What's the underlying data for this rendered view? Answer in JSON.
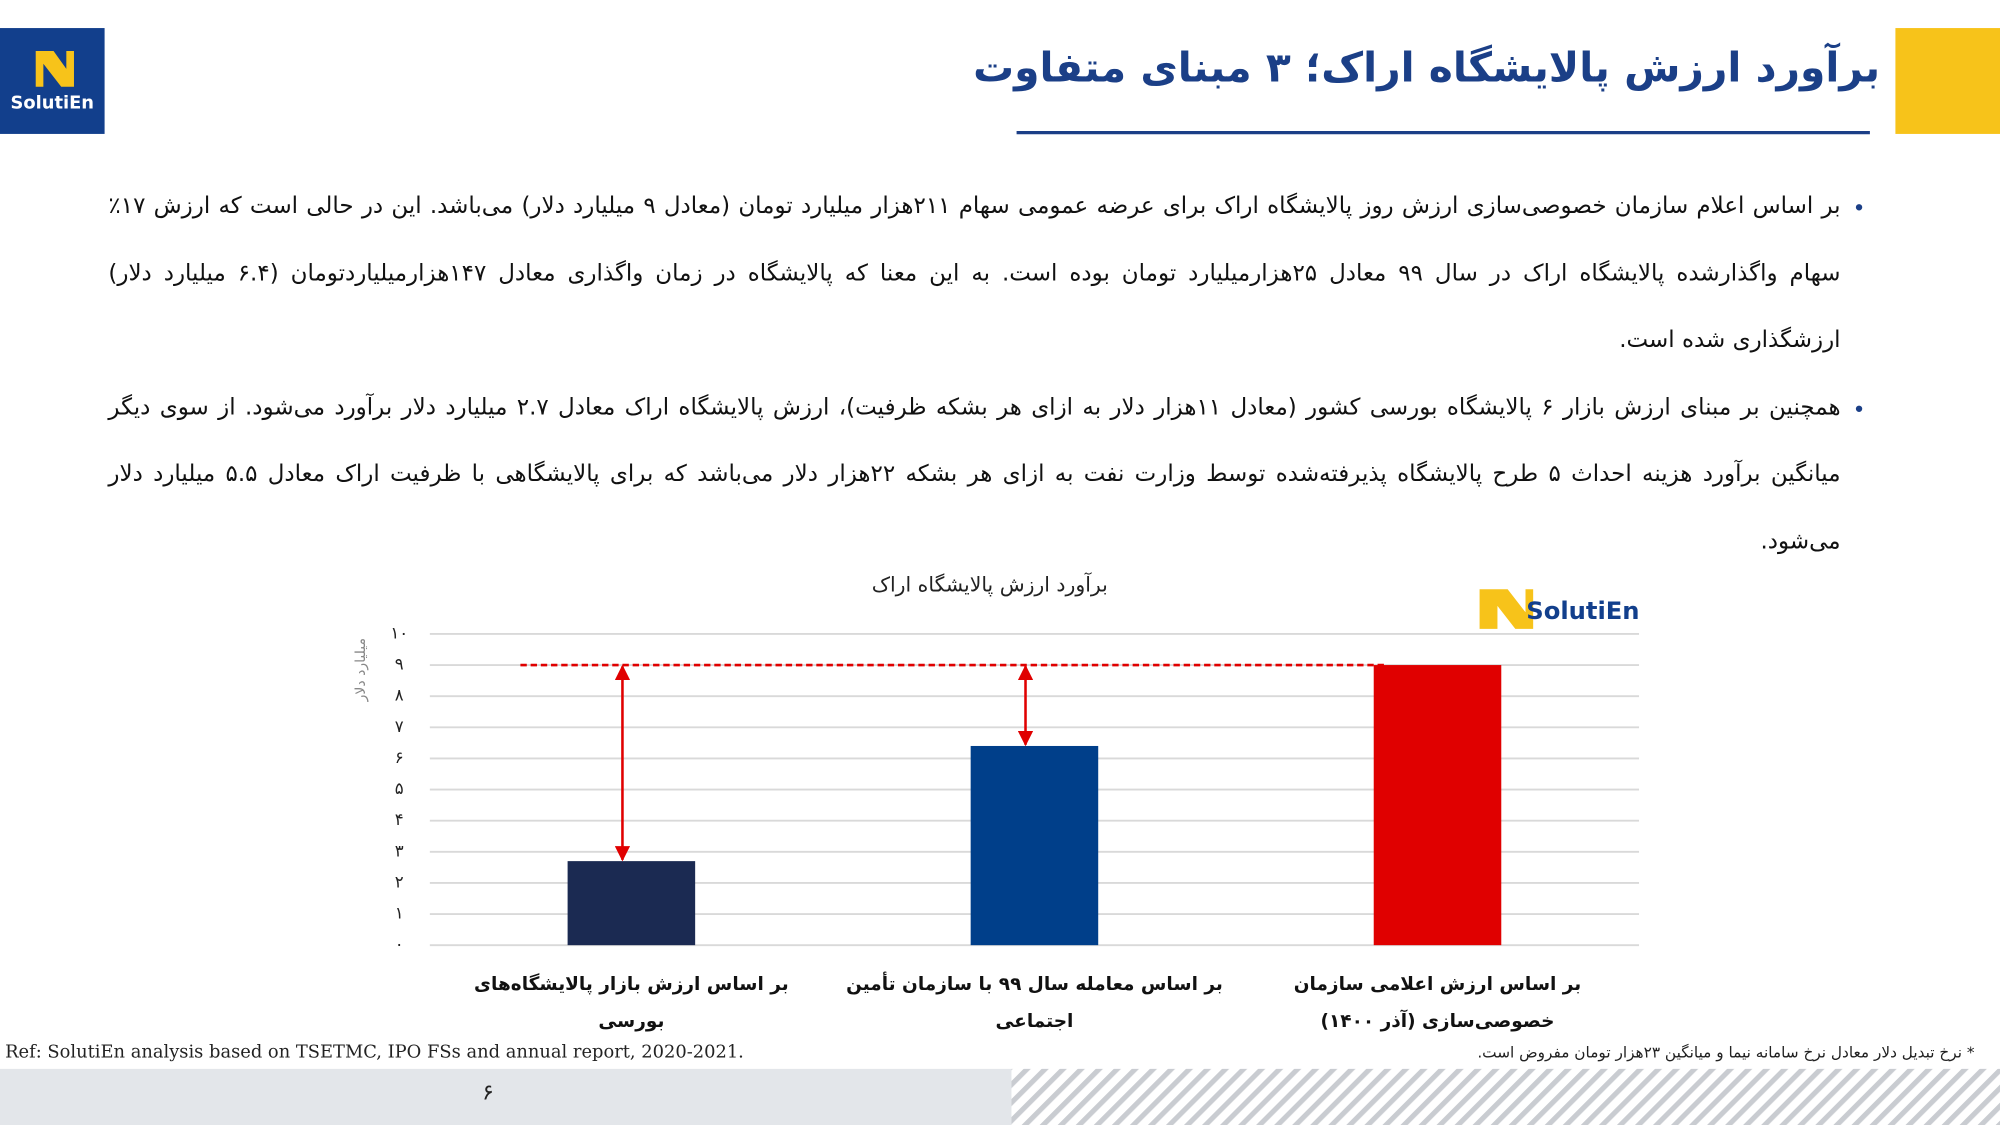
{
  "header": {
    "title": "برآورد ارزش پالایشگاه اراک؛ ۳ مبنای متفاوت",
    "logo": "SolutiEn"
  },
  "bullets": [
    "بر اساس اعلام سازمان خصوصی‌سازی ارزش روز پالایشگاه اراک برای عرضه عمومی سهام ۲۱۱هزار میلیارد تومان (معادل ۹ میلیارد دلار) می‌باشد. این در حالی است که ارزش ۱۷٪ سهام واگذارشده پالایشگاه اراک در سال ۹۹ معادل ۲۵هزارمیلیارد تومان بوده است. به این معنا که پالایشگاه در زمان واگذاری معادل ۱۴۷هزارمیلیاردتومان (۶.۴ میلیارد دلار) ارزشگذاری شده است.",
    "همچنین بر مبنای ارزش بازار ۶ پالایشگاه بورسی کشور (معادل ۱۱هزار دلار به ازای هر بشکه ظرفیت)، ارزش پالایشگاه اراک معادل ۲.۷ میلیارد دلار برآورد می‌شود. از سوی دیگر میانگین برآورد هزینه احداث ۵ طرح پالایشگاه پذیرفته‌شده توسط وزارت نفت به ازای هر بشکه ۲۲هزار دلار می‌باشد که برای پالایشگاهی با ظرفیت اراک معادل ۵.۵ میلیارد دلار می‌شود."
  ],
  "chart_data": {
    "type": "bar",
    "title": "برآورد ارزش پالایشگاه اراک",
    "logo": "SolutiEn",
    "y_label": "میلیارد دلار",
    "categories": [
      "بر اساس ارزش بازار پالایشگاه‌های بورسی",
      "بر اساس معامله سال ۹۹ با سازمان تأمین اجتماعی",
      "بر اساس ارزش اعلامی سازمان خصوصی‌سازی (آذر ۱۴۰۰)"
    ],
    "values": [
      2.7,
      6.4,
      9
    ],
    "colors": [
      "#1b2a52",
      "#003f8a",
      "#e00000"
    ],
    "ylim": [
      0,
      10
    ],
    "yticks": [
      {
        "value": 0,
        "label": "۰"
      },
      {
        "value": 1,
        "label": "۱"
      },
      {
        "value": 2,
        "label": "۲"
      },
      {
        "value": 3,
        "label": "۳"
      },
      {
        "value": 4,
        "label": "۴"
      },
      {
        "value": 5,
        "label": "۵"
      },
      {
        "value": 6,
        "label": "۶"
      },
      {
        "value": 7,
        "label": "۷"
      },
      {
        "value": 8,
        "label": "۸"
      },
      {
        "value": 9,
        "label": "۹"
      },
      {
        "value": 10,
        "label": "۱۰"
      }
    ],
    "grid": true
  },
  "footer": {
    "ref": "Ref: SolutiEn analysis based on TSETMC, IPO FSs and annual report, 2020-2021.",
    "note": "* نرخ تبدیل دلار معادل نرخ سامانه نیما و میانگین ۲۳هزار تومان مفروض است.",
    "page": "۶"
  }
}
